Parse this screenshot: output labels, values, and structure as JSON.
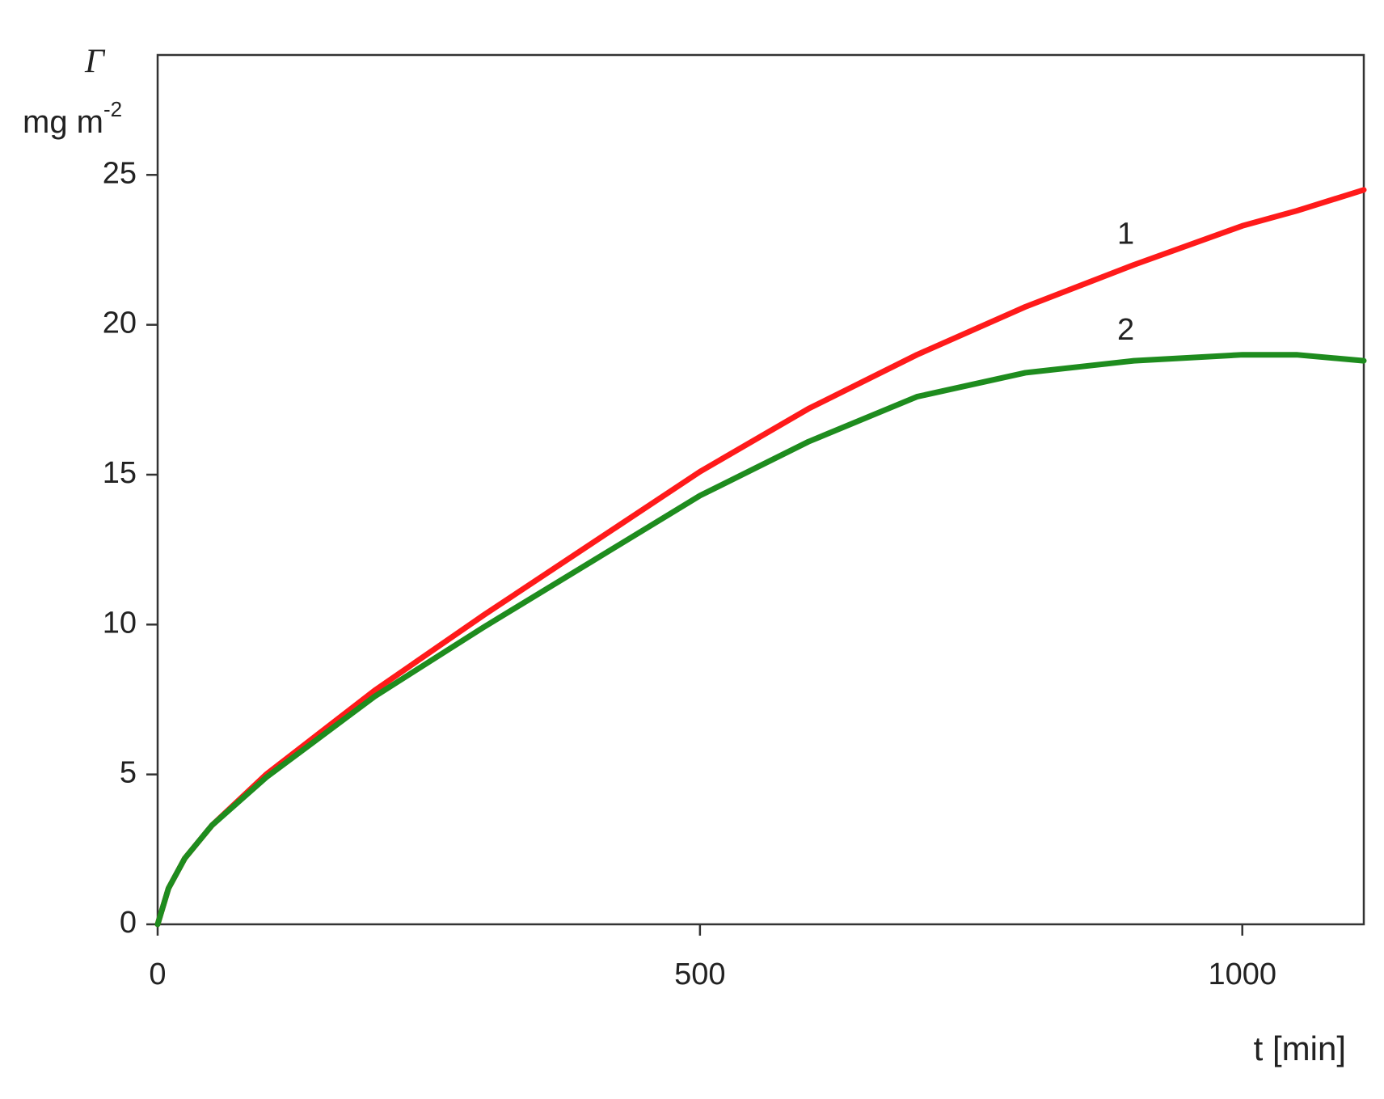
{
  "chart_data": {
    "type": "line",
    "y_label": "Γ",
    "y_unit": "mg m",
    "y_unit_exponent": "-2",
    "x_label": "t [min]",
    "x": [
      0,
      10,
      25,
      50,
      100,
      200,
      300,
      400,
      500,
      600,
      700,
      800,
      900,
      1000,
      1050,
      1112
    ],
    "series": [
      {
        "name": "1",
        "color": "#ff1a1a",
        "values": [
          0,
          1.2,
          2.2,
          3.3,
          5.0,
          7.8,
          10.3,
          12.7,
          15.1,
          17.2,
          19.0,
          20.6,
          22.0,
          23.3,
          23.8,
          24.5
        ]
      },
      {
        "name": "2",
        "color": "#1e8c1e",
        "values": [
          0,
          1.2,
          2.2,
          3.3,
          4.9,
          7.6,
          9.9,
          12.1,
          14.3,
          16.1,
          17.6,
          18.4,
          18.8,
          19.0,
          19.0,
          18.8
        ]
      }
    ],
    "xlim": [
      0,
      1112
    ],
    "ylim": [
      0,
      29
    ],
    "xticks": [
      0,
      500,
      1000
    ],
    "yticks": [
      0,
      5,
      10,
      15,
      20,
      25
    ],
    "grid": false
  }
}
